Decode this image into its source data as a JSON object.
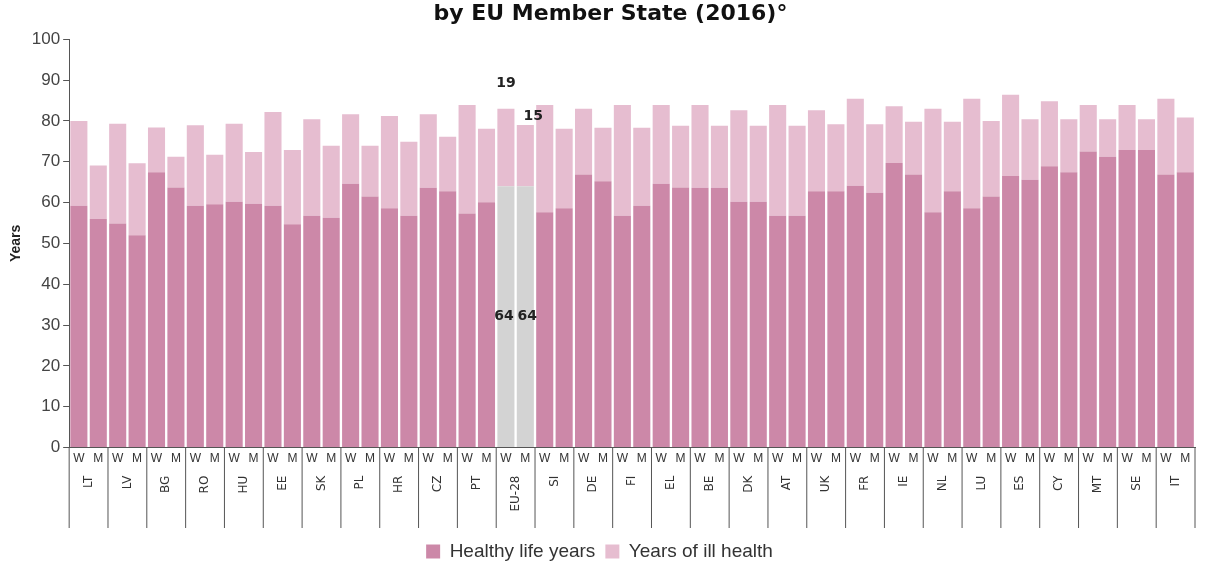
{
  "chart_data": {
    "type": "bar",
    "title": "by EU Member State (2016)°",
    "ylabel": "Years",
    "stacked": true,
    "grid": false,
    "legend": "bottom",
    "categories": [
      "W",
      "M",
      "W",
      "M",
      "W",
      "M",
      "W",
      "M",
      "W",
      "M",
      "W",
      "M",
      "W",
      "M",
      "W",
      "M",
      "W",
      "M",
      "W",
      "M",
      "W",
      "M",
      "W",
      "M",
      "W",
      "M",
      "W",
      "M",
      "W",
      "M",
      "W",
      "M",
      "W",
      "M",
      "W",
      "M",
      "W",
      "M",
      "W",
      "M",
      "W",
      "M",
      "W",
      "M",
      "W",
      "M",
      "W",
      "M",
      "W",
      "M",
      "W",
      "M",
      "W",
      "M",
      "W",
      "M",
      "W",
      "M"
    ],
    "annotations": [
      "LT",
      "LV",
      "BG",
      "RO",
      "HU",
      "EE",
      "SK",
      "PL",
      "HR",
      "CZ",
      "PT",
      "EU-28",
      "SI",
      "DE",
      "FI",
      "EL",
      "BE",
      "DK",
      "AT",
      "UK",
      "FR",
      "IE",
      "NL",
      "LU",
      "ES",
      "CY",
      "MT",
      "SE",
      "IT"
    ],
    "ylim": [
      0,
      100
    ],
    "yticks": [
      0,
      10,
      20,
      30,
      40,
      50,
      60,
      70,
      80,
      90,
      100
    ],
    "series": [
      {
        "name": "Healthy life years",
        "color": "#cc88a8",
        "colors": [
          "#cc88a8",
          "#cc88a8",
          "#cc88a8",
          "#cc88a8",
          "#cc88a8",
          "#cc88a8",
          "#cc88a8",
          "#cc88a8",
          "#cc88a8",
          "#cc88a8",
          "#cc88a8",
          "#cc88a8",
          "#cc88a8",
          "#cc88a8",
          "#cc88a8",
          "#cc88a8",
          "#cc88a8",
          "#cc88a8",
          "#cc88a8",
          "#cc88a8",
          "#cc88a8",
          "#cc88a8",
          "#d3d3d3",
          "#d3d3d3",
          "#cc88a8",
          "#cc88a8",
          "#cc88a8",
          "#cc88a8",
          "#cc88a8",
          "#cc88a8",
          "#cc88a8",
          "#cc88a8",
          "#cc88a8",
          "#cc88a8",
          "#cc88a8",
          "#cc88a8",
          "#cc88a8",
          "#cc88a8",
          "#cc88a8",
          "#cc88a8",
          "#cc88a8",
          "#cc88a8",
          "#cc88a8",
          "#cc88a8",
          "#cc88a8",
          "#cc88a8",
          "#cc88a8",
          "#cc88a8",
          "#cc88a8",
          "#cc88a8",
          "#cc88a8",
          "#cc88a8",
          "#cc88a8",
          "#cc88a8",
          "#cc88a8",
          "#cc88a8",
          "#cc88a8",
          "#cc88a8"
        ],
        "values": [
          59.2,
          56.0,
          54.9,
          52.0,
          67.4,
          63.7,
          59.2,
          59.6,
          60.2,
          59.7,
          59.2,
          54.7,
          56.8,
          56.3,
          64.6,
          61.5,
          58.6,
          56.8,
          63.6,
          62.8,
          57.3,
          60.1,
          64,
          64,
          57.6,
          58.6,
          66.9,
          65.2,
          56.8,
          59.2,
          64.6,
          63.7,
          63.6,
          63.6,
          60.2,
          60.2,
          56.8,
          56.8,
          62.8,
          62.8,
          64.1,
          62.4,
          69.7,
          66.9,
          57.6,
          62.8,
          58.6,
          61.5,
          66.5,
          65.6,
          68.9,
          67.4,
          72.5,
          71.2,
          72.9,
          72.9,
          66.9,
          67.4
        ],
        "value_labels": [
          null,
          null,
          null,
          null,
          null,
          null,
          null,
          null,
          null,
          null,
          null,
          null,
          null,
          null,
          null,
          null,
          null,
          null,
          null,
          null,
          null,
          null,
          "64",
          "64",
          null,
          null,
          null,
          null,
          null,
          null,
          null,
          null,
          null,
          null,
          null,
          null,
          null,
          null,
          null,
          null,
          null,
          null,
          null,
          null,
          null,
          null,
          null,
          null,
          null,
          null,
          null,
          null,
          null,
          null,
          null,
          null,
          null,
          null
        ]
      },
      {
        "name": "Years of ill health",
        "color": "#e6bdd0",
        "values": [
          20.8,
          13.1,
          24.4,
          17.6,
          11.0,
          7.5,
          19.7,
          12.1,
          19.1,
          12.7,
          23.0,
          18.2,
          23.6,
          17.6,
          17.0,
          12.4,
          22.6,
          18.1,
          18.0,
          13.3,
          26.6,
          18.0,
          19,
          15,
          26.3,
          19.5,
          16.1,
          13.1,
          27.1,
          19.1,
          19.3,
          15.1,
          20.3,
          15.2,
          22.4,
          18.6,
          27.1,
          22.0,
          19.8,
          16.4,
          21.3,
          16.8,
          13.9,
          12.9,
          25.4,
          17.0,
          26.8,
          18.5,
          19.9,
          14.8,
          15.9,
          13.0,
          11.4,
          9.2,
          11.0,
          7.5,
          18.5,
          13.4
        ],
        "value_labels": [
          null,
          null,
          null,
          null,
          null,
          null,
          null,
          null,
          null,
          null,
          null,
          null,
          null,
          null,
          null,
          null,
          null,
          null,
          null,
          null,
          null,
          null,
          "19",
          "15",
          null,
          null,
          null,
          null,
          null,
          null,
          null,
          null,
          null,
          null,
          null,
          null,
          null,
          null,
          null,
          null,
          null,
          null,
          null,
          null,
          null,
          null,
          null,
          null,
          null,
          null,
          null,
          null,
          null,
          null,
          null,
          null,
          null,
          null
        ]
      }
    ]
  }
}
